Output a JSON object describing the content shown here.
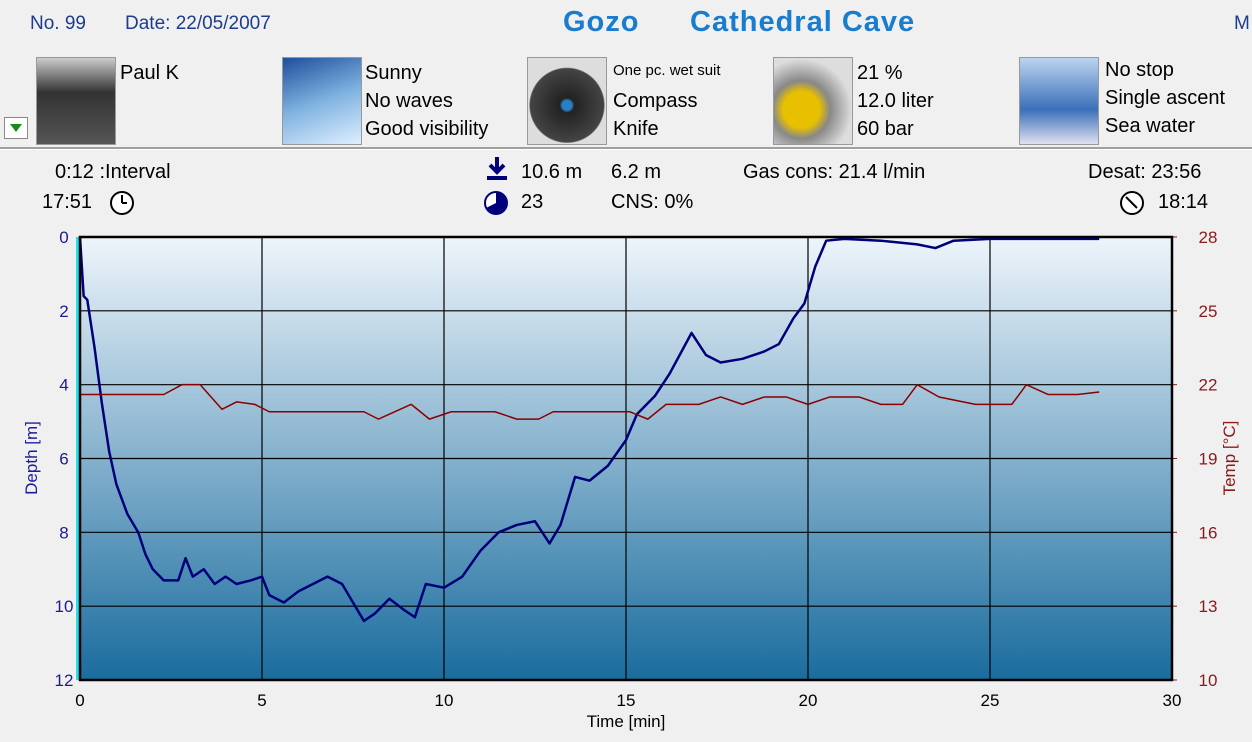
{
  "header": {
    "number": "No. 99",
    "date": "Date: 22/05/2007",
    "site": "Gozo",
    "title": "Cathedral Cave",
    "cut_text": "M"
  },
  "info": [
    {
      "lines": [
        "Paul K"
      ]
    },
    {
      "lines": [
        "Sunny",
        "No waves",
        "Good visibility"
      ]
    },
    {
      "lines": [
        "One pc. wet suit",
        "Compass",
        "Knife"
      ]
    },
    {
      "lines": [
        "21 %",
        "12.0 liter",
        "60 bar"
      ]
    },
    {
      "lines": [
        "No stop",
        "Single ascent",
        "Sea water"
      ]
    }
  ],
  "stats": {
    "interval": "0:12 :Interval",
    "start_time": "17:51",
    "max_depth": "10.6 m",
    "avg_depth": "6.2 m",
    "duration": "23",
    "cns": "CNS:  0%",
    "gas_cons": "Gas cons: 21.4 l/min",
    "desat": "Desat: 23:56",
    "end_time": "18:14"
  },
  "chart_data": {
    "type": "line",
    "xlabel": "Time [min]",
    "ylabel": "Depth [m]",
    "y2label": "Temp [°C]",
    "xlim": [
      0,
      30
    ],
    "xticks": [
      0,
      5,
      10,
      15,
      20,
      25,
      30
    ],
    "ylim": [
      12,
      0
    ],
    "yticks": [
      0,
      2,
      4,
      6,
      8,
      10,
      12
    ],
    "y2lim": [
      10,
      28
    ],
    "y2ticks": [
      10,
      13,
      16,
      19,
      22,
      25,
      28
    ],
    "grid": true,
    "series": [
      {
        "color": "#00007a",
        "axis": "y",
        "x": [
          0,
          0.1,
          0.2,
          0.4,
          0.6,
          0.8,
          1.0,
          1.3,
          1.6,
          1.8,
          2.0,
          2.3,
          2.7,
          2.9,
          3.1,
          3.4,
          3.7,
          4.0,
          4.3,
          4.7,
          5.0,
          5.2,
          5.6,
          6.0,
          6.4,
          6.8,
          7.2,
          7.5,
          7.8,
          8.1,
          8.5,
          8.9,
          9.2,
          9.5,
          10.0,
          10.5,
          11.0,
          11.5,
          12.0,
          12.5,
          12.9,
          13.2,
          13.6,
          14.0,
          14.5,
          15.0,
          15.3,
          15.8,
          16.2,
          16.8,
          17.2,
          17.6,
          18.2,
          18.8,
          19.2,
          19.6,
          19.9,
          20.2,
          20.5,
          21,
          22,
          23,
          23.5,
          24,
          25,
          26,
          27,
          28
        ],
        "values": [
          0,
          1.6,
          1.7,
          3,
          4.5,
          5.8,
          6.7,
          7.5,
          8,
          8.6,
          9.0,
          9.3,
          9.3,
          8.7,
          9.2,
          9.0,
          9.4,
          9.2,
          9.4,
          9.3,
          9.2,
          9.7,
          9.9,
          9.6,
          9.4,
          9.2,
          9.4,
          9.9,
          10.4,
          10.2,
          9.8,
          10.1,
          10.3,
          9.4,
          9.5,
          9.2,
          8.5,
          8.0,
          7.8,
          7.7,
          8.3,
          7.8,
          6.5,
          6.6,
          6.2,
          5.5,
          4.8,
          4.3,
          3.7,
          2.6,
          3.2,
          3.4,
          3.3,
          3.1,
          2.9,
          2.2,
          1.8,
          0.8,
          0.1,
          0.05,
          0.1,
          0.2,
          0.3,
          0.1,
          0.05,
          0.05,
          0.05,
          0.05
        ]
      },
      {
        "color": "#8b0000",
        "axis": "y2",
        "x": [
          0,
          2.3,
          2.8,
          3.3,
          3.9,
          4.3,
          4.8,
          5.2,
          7.8,
          8.2,
          9.1,
          9.6,
          10.2,
          11.4,
          12.0,
          12.6,
          13.0,
          15.1,
          15.6,
          16.1,
          17.0,
          17.6,
          18.2,
          18.8,
          19.4,
          20.0,
          20.6,
          21.4,
          22.0,
          22.6,
          23.0,
          23.6,
          24.6,
          25.6,
          26.0,
          26.6,
          27.4,
          28.0
        ],
        "values": [
          21.6,
          21.6,
          22,
          22,
          21,
          21.3,
          21.2,
          20.9,
          20.9,
          20.6,
          21.2,
          20.6,
          20.9,
          20.9,
          20.6,
          20.6,
          20.9,
          20.9,
          20.6,
          21.2,
          21.2,
          21.5,
          21.2,
          21.5,
          21.5,
          21.2,
          21.5,
          21.5,
          21.2,
          21.2,
          22,
          21.5,
          21.2,
          21.2,
          22,
          21.6,
          21.6,
          21.7
        ]
      }
    ]
  }
}
